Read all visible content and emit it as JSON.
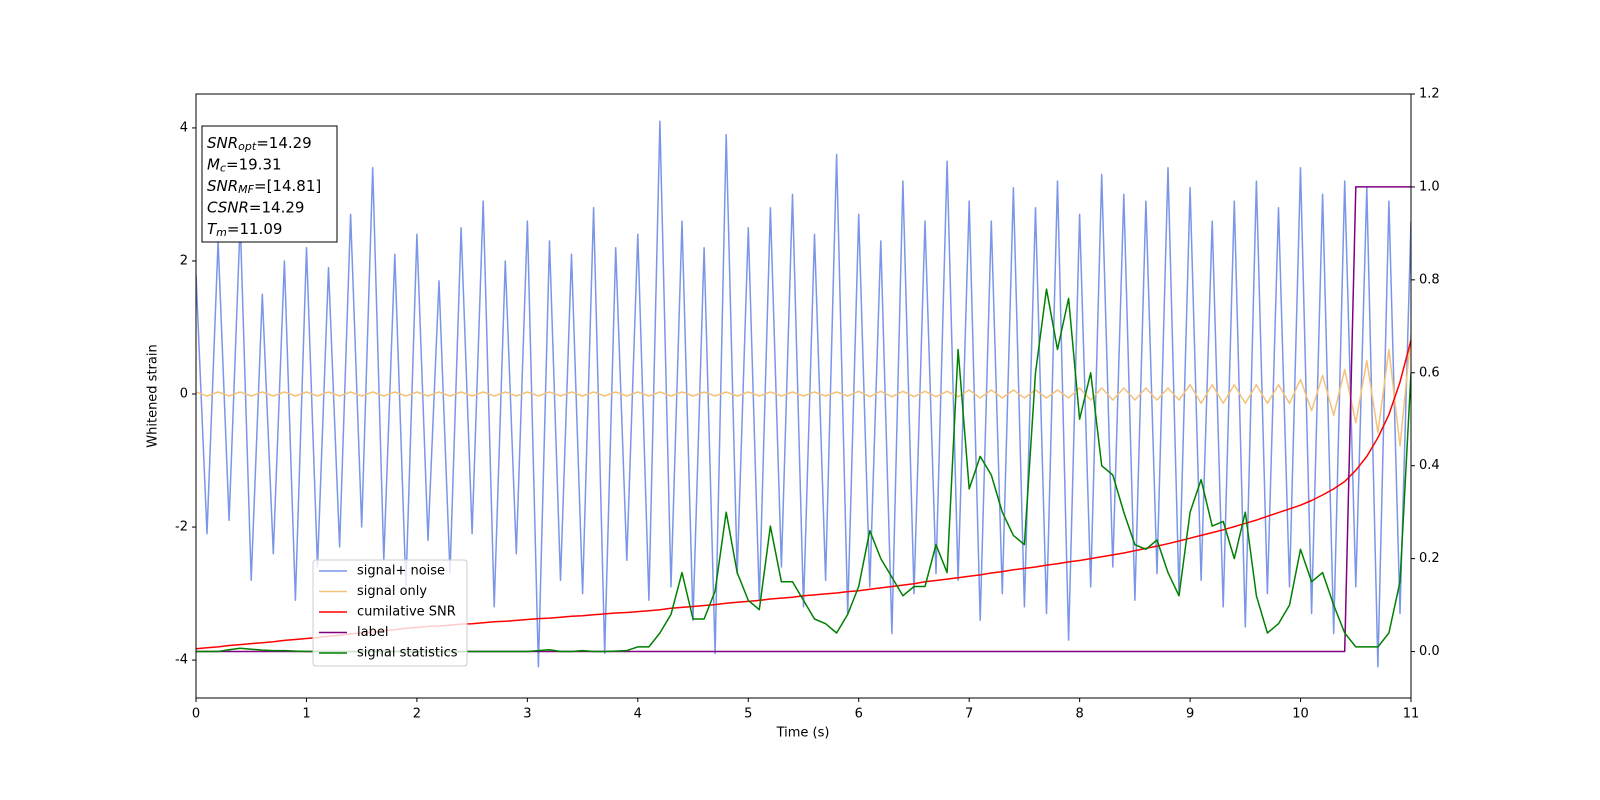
{
  "chart_data": {
    "type": "line",
    "xlabel": "Time (s)",
    "ylabel": "Whitened strain",
    "xlim": [
      0,
      11
    ],
    "xticks": [
      0,
      1,
      2,
      3,
      4,
      5,
      6,
      7,
      8,
      9,
      10,
      11
    ],
    "ylim": [
      -4.57,
      4.51
    ],
    "yticks": [
      -4,
      -2,
      0,
      2,
      4
    ],
    "y2lim": [
      -0.1,
      1.2
    ],
    "y2ticks": [
      {
        "value": 0,
        "label": "0.0"
      },
      {
        "value": 0.2,
        "label": "0.2"
      },
      {
        "value": 0.4,
        "label": "0.4"
      },
      {
        "value": 0.6,
        "label": "0.6"
      },
      {
        "value": 0.8,
        "label": "0.8"
      },
      {
        "value": 1.0,
        "label": "1.0"
      },
      {
        "value": 1.2,
        "label": "1.2"
      }
    ],
    "legend": "lower left",
    "annotation": [
      {
        "name": "SNR",
        "sub": "opt",
        "text": "=14.29"
      },
      {
        "name": "M",
        "sub": "c",
        "text": "=19.31"
      },
      {
        "name": "SNR",
        "sub": "MF",
        "text": "=[14.81]"
      },
      {
        "name": "CSNR",
        "text": "=14.29"
      },
      {
        "name": "T",
        "sub": "m",
        "text": "=11.09"
      }
    ],
    "x": [
      0,
      0.1,
      0.2,
      0.3,
      0.4,
      0.5,
      0.6,
      0.7,
      0.8,
      0.9,
      1,
      1.1,
      1.2,
      1.3,
      1.4,
      1.5,
      1.6,
      1.7,
      1.8,
      1.9,
      2,
      2.1,
      2.2,
      2.3,
      2.4,
      2.5,
      2.6,
      2.7,
      2.8,
      2.9,
      3,
      3.1,
      3.2,
      3.3,
      3.4,
      3.5,
      3.6,
      3.7,
      3.8,
      3.9,
      4,
      4.1,
      4.2,
      4.3,
      4.4,
      4.5,
      4.6,
      4.7,
      4.8,
      4.9,
      5,
      5.1,
      5.2,
      5.3,
      5.4,
      5.5,
      5.6,
      5.7,
      5.8,
      5.9,
      6,
      6.1,
      6.2,
      6.3,
      6.4,
      6.5,
      6.6,
      6.7,
      6.8,
      6.9,
      7,
      7.1,
      7.2,
      7.3,
      7.4,
      7.5,
      7.6,
      7.7,
      7.8,
      7.9,
      8,
      8.1,
      8.2,
      8.3,
      8.4,
      8.5,
      8.6,
      8.7,
      8.8,
      8.9,
      9,
      9.1,
      9.2,
      9.3,
      9.4,
      9.5,
      9.6,
      9.7,
      9.8,
      9.9,
      10,
      10.1,
      10.2,
      10.3,
      10.4,
      10.5,
      10.6,
      10.7,
      10.8,
      10.9,
      11
    ],
    "series": [
      {
        "name": "signal+ noise",
        "color": "#7b96e8",
        "values": [
          1.8,
          -2.1,
          2.3,
          -1.9,
          2.6,
          -2.8,
          1.5,
          -2.4,
          2.0,
          -3.1,
          2.2,
          -2.6,
          1.9,
          -2.3,
          2.7,
          -2.0,
          3.4,
          -2.5,
          2.1,
          -2.9,
          2.4,
          -2.2,
          1.7,
          -2.7,
          2.5,
          -2.1,
          2.9,
          -3.2,
          2.0,
          -2.4,
          2.6,
          -4.1,
          2.3,
          -2.8,
          2.1,
          -3.0,
          2.8,
          -3.9,
          2.2,
          -2.5,
          2.4,
          -3.1,
          4.1,
          -2.9,
          2.6,
          -3.4,
          2.2,
          -3.9,
          3.9,
          -2.7,
          2.5,
          -3.1,
          2.8,
          -2.6,
          3.0,
          -3.2,
          2.4,
          -2.8,
          3.6,
          -3.3,
          2.7,
          -2.9,
          2.3,
          -3.6,
          3.2,
          -3.0,
          2.6,
          -2.7,
          3.5,
          -2.8,
          2.9,
          -3.4,
          2.6,
          -3.0,
          3.1,
          -3.2,
          2.8,
          -3.3,
          3.2,
          -3.7,
          2.7,
          -2.9,
          3.3,
          -2.6,
          3.0,
          -3.1,
          2.9,
          -2.7,
          3.4,
          -3.0,
          3.1,
          -2.8,
          2.6,
          -3.2,
          2.9,
          -3.5,
          3.2,
          -3.0,
          2.8,
          -2.9,
          3.4,
          -3.3,
          3.0,
          -3.6,
          3.2,
          -2.9,
          3.1,
          -4.1,
          2.9,
          -3.3,
          2.6
        ]
      },
      {
        "name": "signal only",
        "color": "#f5c27a",
        "values": [
          0.03,
          -0.03,
          0.03,
          -0.03,
          0.03,
          -0.03,
          0.03,
          -0.03,
          0.03,
          -0.03,
          0.03,
          -0.03,
          0.03,
          -0.03,
          0.03,
          -0.03,
          0.03,
          -0.03,
          0.03,
          -0.03,
          0.03,
          -0.03,
          0.03,
          -0.03,
          0.03,
          -0.03,
          0.03,
          -0.03,
          0.03,
          -0.03,
          0.03,
          -0.03,
          0.03,
          -0.03,
          0.03,
          -0.03,
          0.03,
          -0.03,
          0.03,
          -0.03,
          0.03,
          -0.03,
          0.03,
          -0.03,
          0.03,
          -0.03,
          0.03,
          -0.03,
          0.03,
          -0.03,
          0.03,
          -0.03,
          0.03,
          -0.03,
          0.03,
          -0.03,
          0.03,
          -0.03,
          0.03,
          -0.03,
          0.04,
          -0.04,
          0.04,
          -0.04,
          0.04,
          -0.04,
          0.04,
          -0.04,
          0.04,
          -0.04,
          0.06,
          -0.06,
          0.06,
          -0.06,
          0.06,
          -0.06,
          0.06,
          -0.06,
          0.06,
          -0.06,
          0.09,
          -0.09,
          0.09,
          -0.09,
          0.09,
          -0.09,
          0.09,
          -0.09,
          0.09,
          -0.09,
          0.14,
          -0.14,
          0.14,
          -0.14,
          0.14,
          -0.14,
          0.14,
          -0.14,
          0.14,
          -0.14,
          0.22,
          -0.25,
          0.28,
          -0.32,
          0.37,
          -0.43,
          0.5,
          -0.58,
          0.67,
          -0.78,
          0.9
        ]
      },
      {
        "name": "cumilative SNR",
        "color": "#ff0000",
        "axis": "y2",
        "values": [
          0.006,
          0.008,
          0.01,
          0.013,
          0.015,
          0.017,
          0.019,
          0.021,
          0.024,
          0.026,
          0.028,
          0.03,
          0.033,
          0.035,
          0.038,
          0.04,
          0.042,
          0.045,
          0.047,
          0.05,
          0.052,
          0.054,
          0.055,
          0.057,
          0.059,
          0.06,
          0.062,
          0.064,
          0.065,
          0.067,
          0.069,
          0.071,
          0.072,
          0.074,
          0.076,
          0.077,
          0.079,
          0.081,
          0.083,
          0.084,
          0.086,
          0.088,
          0.09,
          0.093,
          0.095,
          0.097,
          0.099,
          0.101,
          0.104,
          0.106,
          0.108,
          0.11,
          0.113,
          0.115,
          0.117,
          0.12,
          0.122,
          0.124,
          0.126,
          0.129,
          0.131,
          0.134,
          0.137,
          0.14,
          0.143,
          0.146,
          0.15,
          0.153,
          0.156,
          0.159,
          0.162,
          0.165,
          0.169,
          0.172,
          0.176,
          0.179,
          0.182,
          0.186,
          0.189,
          0.193,
          0.196,
          0.2,
          0.204,
          0.208,
          0.212,
          0.217,
          0.222,
          0.227,
          0.232,
          0.238,
          0.244,
          0.25,
          0.256,
          0.262,
          0.269,
          0.276,
          0.283,
          0.291,
          0.299,
          0.307,
          0.315,
          0.325,
          0.337,
          0.35,
          0.366,
          0.39,
          0.42,
          0.46,
          0.51,
          0.58,
          0.67
        ]
      },
      {
        "name": "label",
        "color": "#800080",
        "axis": "y2",
        "values": [
          0,
          0,
          0,
          0,
          0,
          0,
          0,
          0,
          0,
          0,
          0,
          0,
          0,
          0,
          0,
          0,
          0,
          0,
          0,
          0,
          0,
          0,
          0,
          0,
          0,
          0,
          0,
          0,
          0,
          0,
          0,
          0,
          0,
          0,
          0,
          0,
          0,
          0,
          0,
          0,
          0,
          0,
          0,
          0,
          0,
          0,
          0,
          0,
          0,
          0,
          0,
          0,
          0,
          0,
          0,
          0,
          0,
          0,
          0,
          0,
          0,
          0,
          0,
          0,
          0,
          0,
          0,
          0,
          0,
          0,
          0,
          0,
          0,
          0,
          0,
          0,
          0,
          0,
          0,
          0,
          0,
          0,
          0,
          0,
          0,
          0,
          0,
          0,
          0,
          0,
          0,
          0,
          0,
          0,
          0,
          0,
          0,
          0,
          0,
          0,
          0,
          0,
          0,
          0,
          0,
          1,
          1,
          1,
          1,
          1,
          1
        ]
      },
      {
        "name": "signal statistics",
        "color": "#008000",
        "axis": "y2",
        "values": [
          0,
          0,
          0,
          0.004,
          0.007,
          0.005,
          0.003,
          0.002,
          0.002,
          0.001,
          0,
          0,
          0,
          0,
          0,
          0,
          0,
          0,
          0,
          0,
          0,
          0,
          0,
          0,
          0,
          0,
          0,
          0,
          0,
          0,
          0,
          0.002,
          0.004,
          0,
          0,
          0.002,
          0,
          0,
          0.001,
          0.002,
          0.01,
          0.01,
          0.04,
          0.08,
          0.17,
          0.07,
          0.07,
          0.13,
          0.3,
          0.17,
          0.11,
          0.09,
          0.27,
          0.15,
          0.15,
          0.11,
          0.07,
          0.06,
          0.04,
          0.08,
          0.14,
          0.26,
          0.2,
          0.16,
          0.12,
          0.14,
          0.14,
          0.23,
          0.17,
          0.65,
          0.35,
          0.42,
          0.38,
          0.3,
          0.25,
          0.23,
          0.6,
          0.78,
          0.65,
          0.76,
          0.5,
          0.6,
          0.4,
          0.38,
          0.3,
          0.23,
          0.22,
          0.24,
          0.17,
          0.12,
          0.3,
          0.37,
          0.27,
          0.28,
          0.2,
          0.3,
          0.12,
          0.04,
          0.06,
          0.1,
          0.22,
          0.15,
          0.17,
          0.1,
          0.04,
          0.01,
          0.01,
          0.01,
          0.04,
          0.15,
          0.6
        ]
      }
    ]
  }
}
